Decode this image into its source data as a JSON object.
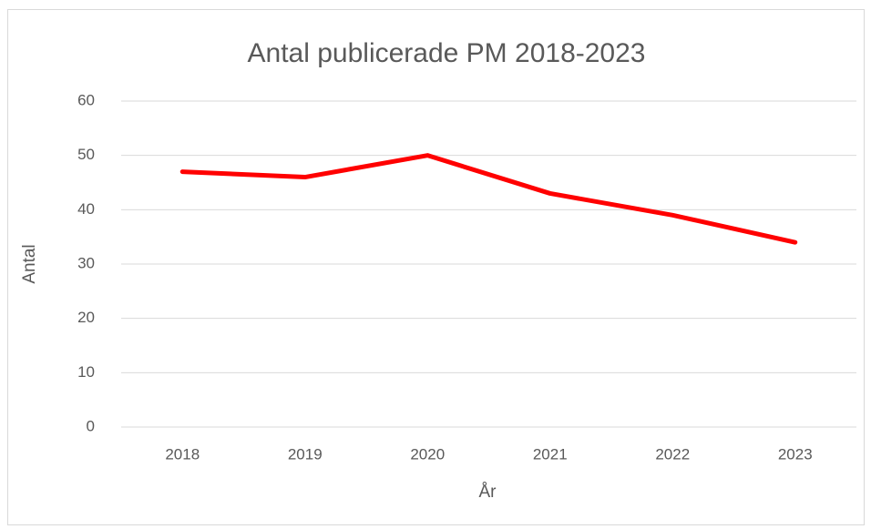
{
  "chart_data": {
    "type": "line",
    "title": "Antal publicerade PM 2018-2023",
    "xlabel": "År",
    "ylabel": "Antal",
    "categories": [
      "2018",
      "2019",
      "2020",
      "2021",
      "2022",
      "2023"
    ],
    "series": [
      {
        "name": "Antal",
        "color": "#ff0000",
        "values": [
          47,
          46,
          50,
          43,
          39,
          34
        ]
      }
    ],
    "ylim": [
      0,
      60
    ],
    "yticks": [
      0,
      10,
      20,
      30,
      40,
      50,
      60
    ],
    "grid": true
  }
}
